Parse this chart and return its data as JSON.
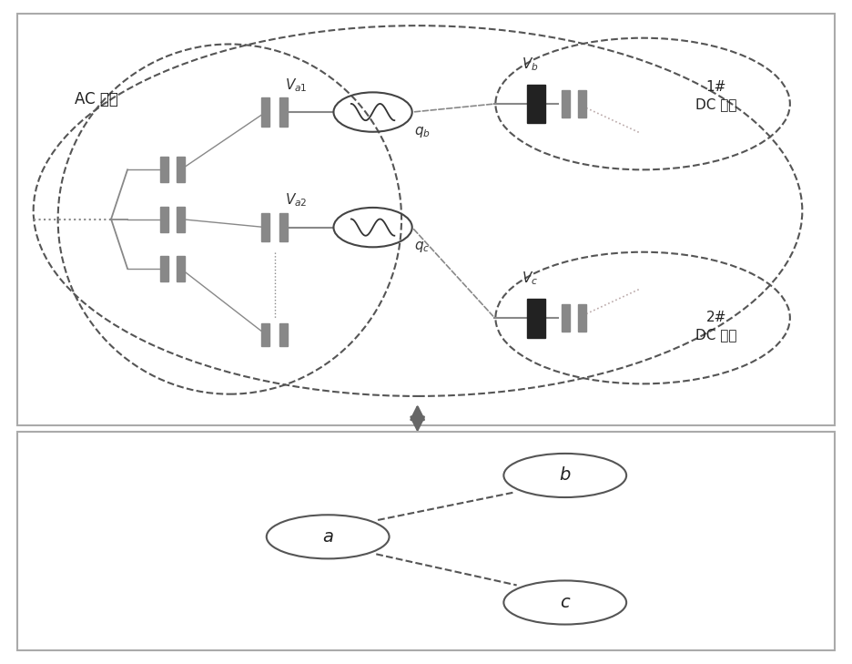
{
  "bg_color": "#ffffff",
  "gc": "#888888",
  "dc_color": "#555555",
  "dark": "#333333",
  "lw_dash": 1.5,
  "ac_label": "AC 微网",
  "dc1_label": "1#\nDC 微网",
  "dc2_label": "2#\nDC 微网",
  "Va1_label": "$V_{a1}$",
  "Va2_label": "$V_{a2}$",
  "Vb_label": "$V_{b}$",
  "Vc_label": "$V_{c}$",
  "qb_label": "$q_b$",
  "qc_label": "$q_c$",
  "node_a_label": "$a$",
  "node_b_label": "$b$",
  "node_c_label": "$c$"
}
